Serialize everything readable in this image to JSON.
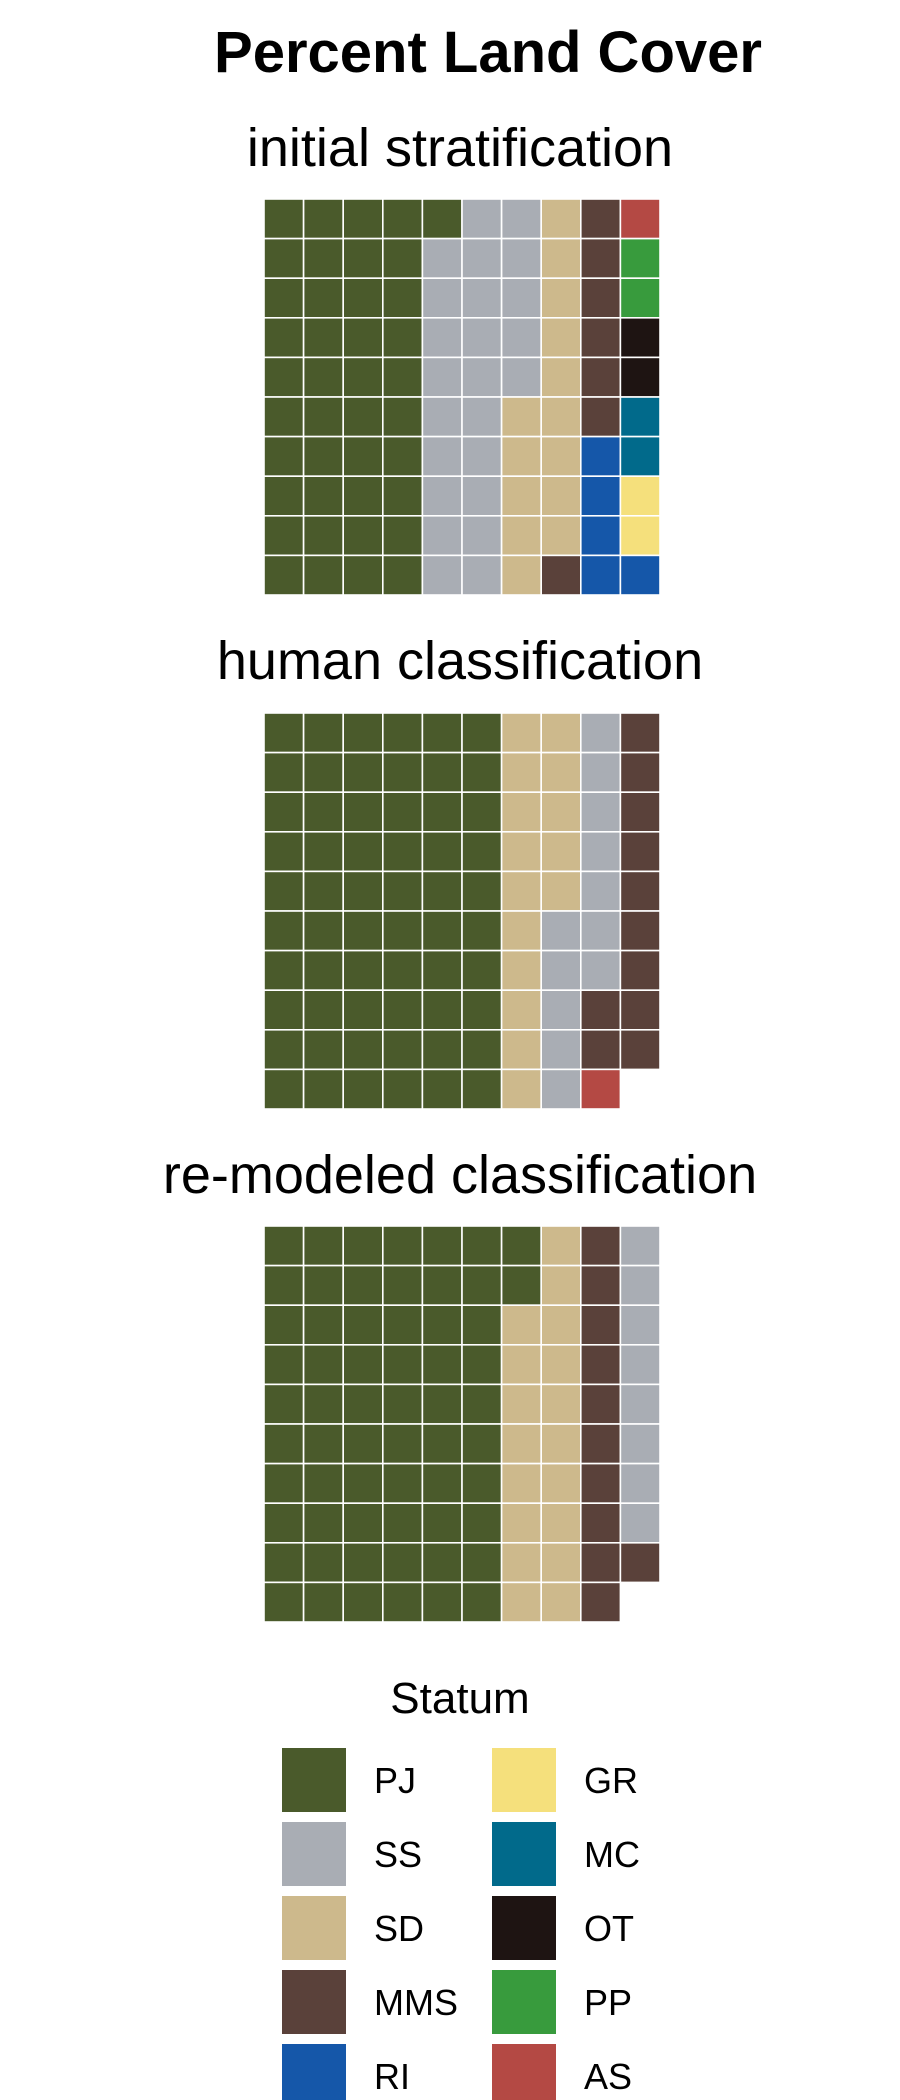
{
  "chart_data": {
    "type": "waffle",
    "title": "Percent Land Cover",
    "rows": 10,
    "cols": 10,
    "fill_order": "column-major, top to bottom",
    "colors": {
      "PJ": "#4a5a2b",
      "SS": "#a9adb4",
      "SD": "#cdb98c",
      "MMS": "#5a413a",
      "RI": "#1557a9",
      "GR": "#f5e07c",
      "MC": "#016a8b",
      "OT": "#1e1412",
      "PP": "#389b3d",
      "AS": "#b44944"
    },
    "panels": [
      {
        "name": "initial stratification",
        "title": "initial stratification",
        "counts": [
          {
            "statum": "PJ",
            "value": 41
          },
          {
            "statum": "SS",
            "value": 24
          },
          {
            "statum": "SD",
            "value": 14
          },
          {
            "statum": "MMS",
            "value": 7
          },
          {
            "statum": "RI",
            "value": 4
          },
          {
            "statum": "AS",
            "value": 1
          },
          {
            "statum": "PP",
            "value": 2
          },
          {
            "statum": "OT",
            "value": 2
          },
          {
            "statum": "MC",
            "value": 2
          },
          {
            "statum": "GR",
            "value": 2
          },
          {
            "statum": "RI",
            "value": 1
          }
        ]
      },
      {
        "name": "human classification",
        "title": "human classification",
        "counts": [
          {
            "statum": "PJ",
            "value": 60
          },
          {
            "statum": "SD",
            "value": 15
          },
          {
            "statum": "SS",
            "value": 12
          },
          {
            "statum": "MMS",
            "value": 2
          },
          {
            "statum": "AS",
            "value": 1
          },
          {
            "statum": "MMS",
            "value": 9
          }
        ]
      },
      {
        "name": "re-modeled classification",
        "title": "re-modeled classification",
        "counts": [
          {
            "statum": "PJ",
            "value": 62
          },
          {
            "statum": "SD",
            "value": 18
          },
          {
            "statum": "MMS",
            "value": 10
          },
          {
            "statum": "SS",
            "value": 8
          },
          {
            "statum": "MMS",
            "value": 1
          }
        ]
      }
    ],
    "legend": {
      "title": "Statum",
      "entries": [
        "PJ",
        "SS",
        "SD",
        "MMS",
        "RI",
        "GR",
        "MC",
        "OT",
        "PP",
        "AS"
      ]
    }
  }
}
